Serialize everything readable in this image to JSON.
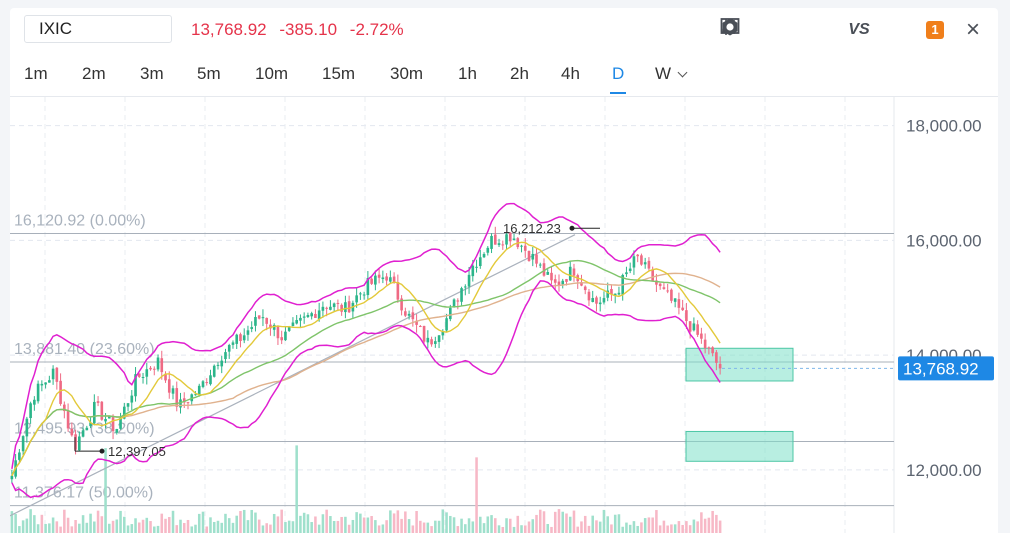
{
  "header": {
    "symbol": "IXIC",
    "last": "13,768.92",
    "change": "-385.10",
    "change_pct": "-2.72%"
  },
  "toolbar": {
    "icons": [
      "pencil-icon",
      "line-chart-icon",
      "candles-icon",
      "compare-vs-icon",
      "settings-gear-icon",
      "alert-count-badge",
      "close-icon"
    ],
    "vs_label": "VS",
    "badge_count": "1",
    "close_glyph": "×"
  },
  "timeframes": [
    "1m",
    "2m",
    "3m",
    "5m",
    "10m",
    "15m",
    "30m",
    "1h",
    "2h",
    "4h",
    "D",
    "W"
  ],
  "active_timeframe": "D",
  "colors": {
    "up": "#2bb58a",
    "down": "#ef6a84",
    "bollinger": "#e020d0",
    "ma_short": "#e3c93a",
    "ma_mid": "#7fc46a",
    "ma_long": "#e0b28e",
    "accent": "#1e88e5",
    "zone": "#7ee0c8"
  },
  "chart_data": {
    "type": "candlestick",
    "title": "",
    "ylim": [
      10900,
      18500
    ],
    "y_ticks": [
      "18,000.00",
      "16,000.00",
      "14,000.00",
      "12,000.00"
    ],
    "y_tick_values": [
      18000,
      16000,
      14000,
      12000
    ],
    "last_price_label": "13,768.92",
    "last_price": 13768.92,
    "fib_levels": [
      {
        "price": 16120.92,
        "label": "16,120.92 (0.00%)"
      },
      {
        "price": 13881.4,
        "label": "13,881.40 (23.60%)"
      },
      {
        "price": 12495.93,
        "label": "12,495.93 (38.20%)"
      },
      {
        "price": 11376.17,
        "label": "11,376.17 (50.00%)"
      }
    ],
    "annotations": [
      {
        "label": "16,212.23",
        "price": 16212.23
      },
      {
        "label": "12,397.05",
        "price": 12397.05
      }
    ],
    "zones": [
      {
        "from": 13550,
        "to": 14120
      },
      {
        "from": 12150,
        "to": 12670
      }
    ],
    "price_path": [
      11900,
      13300,
      13700,
      12400,
      13100,
      12700,
      13600,
      13900,
      13100,
      13400,
      14000,
      14300,
      14700,
      14300,
      14600,
      14900,
      14800,
      15200,
      15400,
      14700,
      14200,
      14700,
      15500,
      16000,
      16100,
      15700,
      15200,
      15500,
      14900,
      15100,
      15700,
      15200,
      14800,
      14300,
      13769
    ],
    "trendline": [
      11200,
      16100
    ]
  }
}
